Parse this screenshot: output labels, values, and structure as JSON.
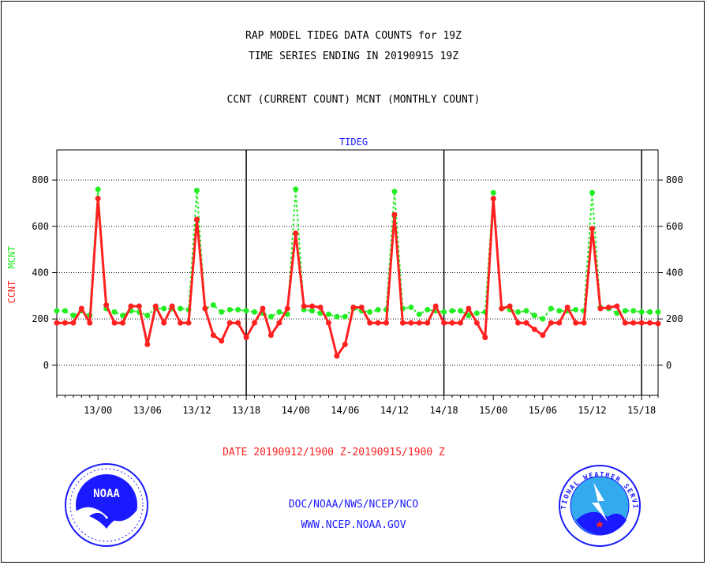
{
  "header": {
    "line1": "RAP MODEL TIDEG DATA COUNTS for 19Z",
    "line2": "TIME SERIES ENDING IN 20190915 19Z",
    "line3": "CCNT (CURRENT COUNT) MCNT (MONTHLY COUNT)"
  },
  "footer": {
    "date_range": "DATE 20190912/1900 Z-20190915/1900 Z",
    "org": "DOC/NOAA/NWS/NCEP/NCO",
    "url": "WWW.NCEP.NOAA.GOV",
    "noaa_logo_text": "NOAA",
    "nws_logo_text": "NATIONAL WEATHER SERVICE"
  },
  "colors": {
    "ccnt": "#ff2020",
    "mcnt": "#22ee22",
    "title_blue": "#1a1aff"
  },
  "chart_data": {
    "type": "line",
    "title": "TIDEG",
    "ylabel_ccnt": "CCNT",
    "ylabel_mcnt": "MCNT",
    "ylim": [
      -130,
      930
    ],
    "yticks": [
      0,
      200,
      400,
      600,
      800
    ],
    "xlim_hours": [
      -5,
      68
    ],
    "xtick_hours": [
      0,
      6,
      12,
      18,
      24,
      30,
      36,
      42,
      48,
      54,
      60,
      66
    ],
    "xtick_labels": [
      "13/00",
      "13/06",
      "13/12",
      "13/18",
      "14/00",
      "14/06",
      "14/12",
      "14/18",
      "15/00",
      "15/06",
      "15/12",
      "15/18"
    ],
    "day_boundary_hours": [
      18,
      42,
      66
    ],
    "grid": "horizontal",
    "series": [
      {
        "name": "CCNT",
        "x": [
          -5,
          -4,
          -3,
          -2,
          -1,
          0,
          1,
          2,
          3,
          4,
          5,
          6,
          7,
          8,
          9,
          10,
          11,
          12,
          13,
          14,
          15,
          16,
          17,
          18,
          19,
          20,
          21,
          22,
          23,
          24,
          25,
          26,
          27,
          28,
          29,
          30,
          31,
          32,
          33,
          34,
          35,
          36,
          37,
          38,
          39,
          40,
          41,
          42,
          43,
          44,
          45,
          46,
          47,
          48,
          49,
          50,
          51,
          52,
          53,
          54,
          55,
          56,
          57,
          58,
          59,
          60,
          61,
          62,
          63,
          64,
          65,
          66,
          67,
          68
        ],
        "y": [
          183,
          183,
          183,
          245,
          183,
          720,
          260,
          183,
          183,
          255,
          255,
          90,
          255,
          183,
          255,
          183,
          183,
          630,
          245,
          130,
          105,
          183,
          183,
          120,
          183,
          245,
          130,
          183,
          245,
          570,
          255,
          255,
          250,
          183,
          40,
          90,
          250,
          250,
          183,
          183,
          183,
          650,
          183,
          183,
          183,
          183,
          255,
          183,
          183,
          183,
          245,
          183,
          120,
          720,
          245,
          255,
          183,
          183,
          155,
          130,
          183,
          183,
          250,
          183,
          183,
          590,
          245,
          250,
          255,
          183,
          183,
          183,
          183,
          180
        ]
      },
      {
        "name": "MCNT",
        "x": [
          -5,
          -4,
          -3,
          -2,
          -1,
          0,
          1,
          2,
          3,
          4,
          5,
          6,
          7,
          8,
          9,
          10,
          11,
          12,
          13,
          14,
          15,
          16,
          17,
          18,
          19,
          20,
          21,
          22,
          23,
          24,
          25,
          26,
          27,
          28,
          29,
          30,
          31,
          32,
          33,
          34,
          35,
          36,
          37,
          38,
          39,
          40,
          41,
          42,
          43,
          44,
          45,
          46,
          47,
          48,
          49,
          50,
          51,
          52,
          53,
          54,
          55,
          56,
          57,
          58,
          59,
          60,
          61,
          62,
          63,
          64,
          65,
          66,
          67,
          68
        ],
        "y": [
          235,
          235,
          215,
          235,
          215,
          760,
          245,
          230,
          215,
          235,
          230,
          215,
          245,
          245,
          245,
          245,
          240,
          755,
          245,
          260,
          230,
          240,
          240,
          235,
          230,
          225,
          210,
          230,
          220,
          760,
          240,
          235,
          225,
          220,
          210,
          210,
          245,
          235,
          230,
          240,
          240,
          750,
          245,
          250,
          220,
          240,
          235,
          230,
          235,
          235,
          215,
          225,
          230,
          745,
          245,
          240,
          230,
          235,
          215,
          200,
          245,
          235,
          235,
          240,
          235,
          745,
          250,
          245,
          225,
          235,
          235,
          230,
          230,
          230
        ]
      }
    ]
  }
}
